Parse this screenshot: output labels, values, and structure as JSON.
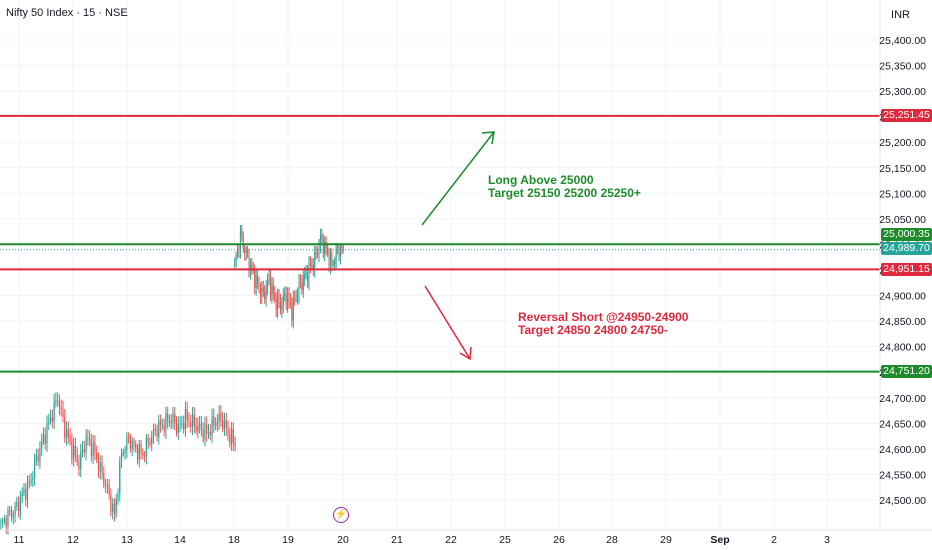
{
  "header": {
    "title": "Nifty 50 Index · 15 · NSE",
    "currency": "INR"
  },
  "annotations": {
    "long_line1": "Long Above 25000",
    "long_line2": "Target 25150 25200 25250+",
    "short_line1": "Reversal Short @24950-24900",
    "short_line2": "Target 24850 24800 24750-"
  },
  "price_labels": {
    "r1": "25,251.45",
    "r2": "25,000.35",
    "last": "24,989.70",
    "r3": "24,951.15",
    "s1": "24,751.20"
  },
  "colors": {
    "red": "#e0283c",
    "green": "#1e8c2a",
    "teal": "#26a69a",
    "up": "#26a69a",
    "down": "#ef5350"
  },
  "icons": {
    "event": "lightning-bolt-icon"
  },
  "chart_data": {
    "type": "candlestick",
    "title": "Nifty 50 Index · 15 · NSE",
    "y_unit": "INR",
    "ylim": [
      24450,
      25430
    ],
    "y_ticks": [
      24500,
      24550,
      24600,
      24650,
      24700,
      24750,
      24800,
      24850,
      24900,
      24950,
      25000,
      25050,
      25100,
      25150,
      25200,
      25250,
      25300,
      25350,
      25400
    ],
    "y_tick_labels": [
      "24,500.00",
      "24,550.00",
      "24,600.00",
      "24,650.00",
      "24,700.00",
      "24,750.00",
      "24,800.00",
      "24,850.00",
      "24,900.00",
      "24,950.00",
      "25,000.00",
      "25,050.00",
      "25,100.00",
      "25,150.00",
      "25,200.00",
      "25,250.00",
      "25,300.00",
      "25,350.00",
      "25,400.00"
    ],
    "x_tick_labels": [
      "11",
      "12",
      "13",
      "14",
      "18",
      "19",
      "20",
      "21",
      "22",
      "25",
      "26",
      "28",
      "29",
      "Sep",
      "2",
      "3"
    ],
    "horizontal_levels": [
      {
        "price": 25251.45,
        "color": "red"
      },
      {
        "price": 25000.35,
        "color": "green"
      },
      {
        "price": 24951.15,
        "color": "red"
      },
      {
        "price": 24751.2,
        "color": "green"
      }
    ],
    "last_price": 24989.7,
    "segments": [
      {
        "x_range": [
          "11",
          "14"
        ],
        "close_path": [
          24450,
          24470,
          24480,
          24510,
          24530,
          24580,
          24620,
          24660,
          24700,
          24640,
          24600,
          24570,
          24620,
          24600,
          24560,
          24520,
          24470,
          24590,
          24620,
          24600,
          24590,
          24620,
          24640,
          24650,
          24660,
          24640,
          24660,
          24650,
          24640,
          24630,
          24650,
          24660,
          24630,
          24610
        ]
      },
      {
        "x_range": [
          "18",
          "19"
        ],
        "close_path": [
          24960,
          25020,
          24980,
          24950,
          24920,
          24900,
          24930,
          24890,
          24880,
          24900,
          24870,
          24910,
          24930,
          24950,
          24970,
          25010,
          24990,
          24960,
          24990,
          24990
        ]
      }
    ],
    "arrows": [
      {
        "direction": "up",
        "color": "green",
        "label": "Long Above 25000 / Target 25150 25200 25250+"
      },
      {
        "direction": "down",
        "color": "red",
        "label": "Reversal Short @24950-24900 / Target 24850 24800 24750-"
      }
    ]
  }
}
